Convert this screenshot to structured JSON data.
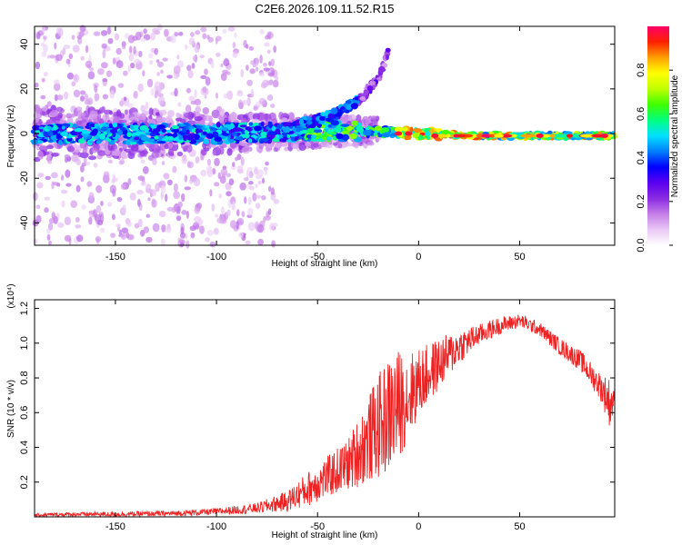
{
  "title": "C2E6.2026.109.11.52.R15",
  "chart_data": [
    {
      "type": "heatmap",
      "name": "spectrogram",
      "xlabel": "Height of straight line (km)",
      "ylabel": "Frequency (Hz)",
      "xlim": [
        -190,
        97
      ],
      "ylim": [
        -50,
        48
      ],
      "xticks": [
        -150,
        -100,
        -50,
        0,
        50
      ],
      "yticks": [
        -40,
        -20,
        0,
        20,
        40
      ],
      "colorbar": {
        "label": "Normalized spectral amplitude",
        "range": [
          0,
          1
        ],
        "ticks": [
          0.0,
          0.2,
          0.4,
          0.6,
          0.8
        ],
        "colors": [
          "#ffffff",
          "#e9c8f5",
          "#c67ee8",
          "#8a2be2",
          "#5a00f0",
          "#0000ff",
          "#0080ff",
          "#00e0ff",
          "#00ff80",
          "#40ff00",
          "#c0ff00",
          "#ffff00",
          "#ffa000",
          "#ff2000",
          "#ff006a"
        ]
      },
      "description_series": [
        {
          "name": "main band center",
          "x": [
            -190,
            -150,
            -100,
            -50,
            -20,
            0,
            30,
            60,
            95
          ],
          "y": [
            0,
            0,
            0,
            1,
            1,
            0,
            -1,
            -1,
            -1
          ]
        },
        {
          "name": "upper branch",
          "x": [
            -60,
            -50,
            -40,
            -30,
            -20,
            -15
          ],
          "y": [
            4,
            6,
            9,
            15,
            24,
            36
          ]
        }
      ]
    },
    {
      "type": "line",
      "name": "snr",
      "xlabel": "Height of straight line (km)",
      "ylabel": "SNR (10 * v/v)",
      "y_multiplier": "(x10⁴)",
      "xlim": [
        -190,
        97
      ],
      "ylim": [
        0,
        1.25
      ],
      "xticks": [
        -150,
        -100,
        -50,
        0,
        50
      ],
      "yticks": [
        0.2,
        0.4,
        0.6,
        0.8,
        1.0,
        1.2
      ],
      "color": "#ee2222",
      "envelope": {
        "x": [
          -190,
          -170,
          -150,
          -120,
          -100,
          -80,
          -65,
          -55,
          -45,
          -35,
          -28,
          -20,
          -12,
          -5,
          0,
          10,
          20,
          30,
          40,
          50,
          60,
          70,
          80,
          90,
          95,
          97
        ],
        "mid": [
          0.01,
          0.015,
          0.015,
          0.02,
          0.03,
          0.05,
          0.09,
          0.16,
          0.23,
          0.3,
          0.4,
          0.52,
          0.62,
          0.7,
          0.77,
          0.88,
          0.98,
          1.05,
          1.1,
          1.13,
          1.08,
          0.98,
          0.9,
          0.75,
          0.65,
          0.68
        ],
        "amp": [
          0.01,
          0.012,
          0.015,
          0.015,
          0.02,
          0.03,
          0.06,
          0.1,
          0.12,
          0.15,
          0.22,
          0.3,
          0.35,
          0.25,
          0.2,
          0.15,
          0.1,
          0.06,
          0.05,
          0.04,
          0.04,
          0.05,
          0.06,
          0.08,
          0.15,
          0.03
        ]
      }
    }
  ]
}
